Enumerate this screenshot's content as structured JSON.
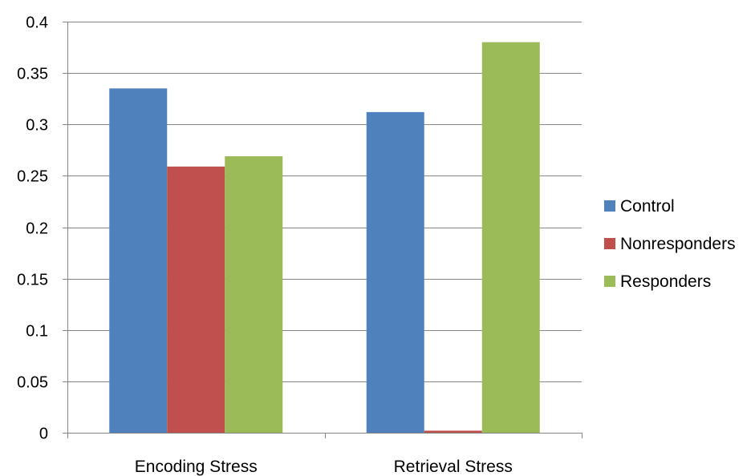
{
  "chart_data": {
    "type": "bar",
    "categories": [
      "Encoding Stress",
      "Retrieval Stress"
    ],
    "series": [
      {
        "name": "Control",
        "color": "#4F81BD",
        "values": [
          0.335,
          0.312
        ]
      },
      {
        "name": "Nonresponders",
        "color": "#C0504D",
        "values": [
          0.259,
          0.002
        ]
      },
      {
        "name": "Responders",
        "color": "#9BBB59",
        "values": [
          0.269,
          0.38
        ]
      }
    ],
    "ylim": [
      0,
      0.4
    ],
    "yticks": [
      0,
      0.05,
      0.1,
      0.15,
      0.2,
      0.25,
      0.3,
      0.35,
      0.4
    ],
    "ytick_labels": [
      "0",
      "0.05",
      "0.1",
      "0.15",
      "0.2",
      "0.25",
      "0.3",
      "0.35",
      "0.4"
    ],
    "grid": true,
    "legend_position": "right",
    "title": "",
    "xlabel": "",
    "ylabel": ""
  }
}
